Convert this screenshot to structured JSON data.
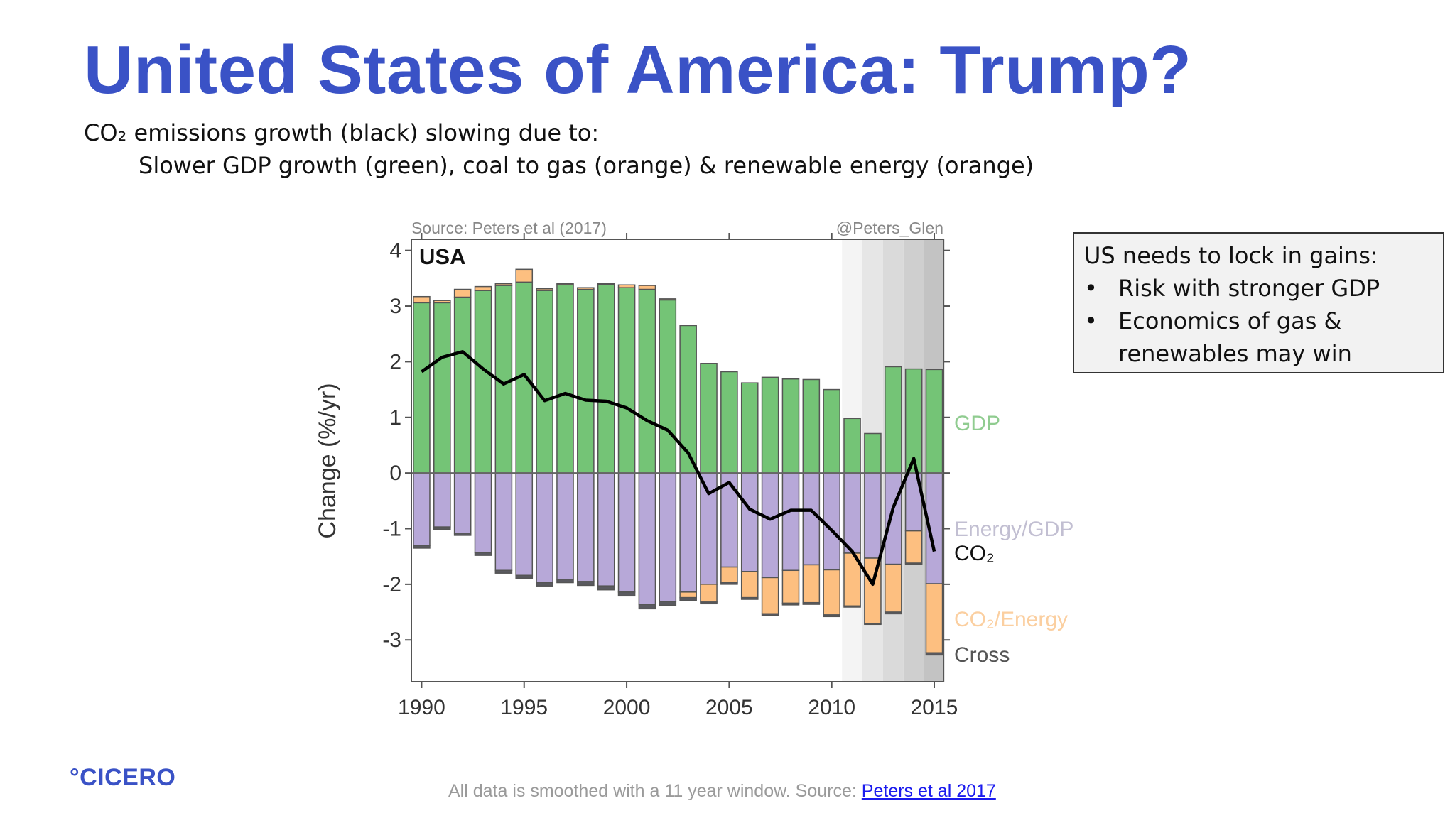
{
  "slide": {
    "title": "United States of America: Trump?",
    "subtitle_line1": "CO₂ emissions growth (black) slowing due to:",
    "subtitle_line2": "Slower GDP growth (green), coal to gas (orange) & renewable energy (orange)"
  },
  "callout": {
    "heading": "US needs to lock in gains:",
    "bullets": [
      "Risk with stronger GDP",
      "Economics of gas & renewables may win"
    ]
  },
  "footer": {
    "logo": "°CICERO",
    "note": "All data is smoothed with a 11 year window. Source: ",
    "link": "Peters et al 2017"
  },
  "chart_data": {
    "type": "bar",
    "stacked": true,
    "panel_label": "USA",
    "source_label": "Source: Peters et al (2017)",
    "credit_label": "@Peters_Glen",
    "ylabel": "Change (%/yr)",
    "xlabel": "",
    "xlim": [
      1989.5,
      2015.45
    ],
    "ylim": [
      -3.75,
      4.2
    ],
    "yticks": [
      -3,
      -2,
      -1,
      0,
      1,
      2,
      3,
      4
    ],
    "xticks": [
      1990,
      1995,
      2000,
      2005,
      2010,
      2015
    ],
    "shaded_years": [
      2011,
      2012,
      2013,
      2014,
      2015
    ],
    "legend_placement": "right",
    "colors": {
      "GDP": "#74c476",
      "Energy/GDP": "#b7a8d8",
      "CO2/Energy": "#fdbf80",
      "Cross": "#5a5a60",
      "CO2": "#000000"
    },
    "legend": [
      {
        "label": "GDP",
        "color": "#90cc90"
      },
      {
        "label": "Energy/GDP",
        "color": "#c2bfd2"
      },
      {
        "label": "CO₂",
        "color": "#111111"
      },
      {
        "label": "CO₂/Energy",
        "color": "#fbcfa0"
      },
      {
        "label": "Cross",
        "color": "#555555"
      }
    ],
    "years": [
      1990,
      1991,
      1992,
      1993,
      1994,
      1995,
      1996,
      1997,
      1998,
      1999,
      2000,
      2001,
      2002,
      2003,
      2004,
      2005,
      2006,
      2007,
      2008,
      2009,
      2010,
      2011,
      2012,
      2013,
      2014,
      2015
    ],
    "series": [
      {
        "name": "GDP",
        "values": [
          3.06,
          3.06,
          3.16,
          3.28,
          3.37,
          3.43,
          3.28,
          3.38,
          3.3,
          3.39,
          3.33,
          3.3,
          3.11,
          2.65,
          1.97,
          1.82,
          1.62,
          1.72,
          1.69,
          1.68,
          1.5,
          0.98,
          0.71,
          1.91,
          1.87,
          1.86
        ]
      },
      {
        "name": "CO₂/Energy",
        "values_positive": [
          0.11,
          0.04,
          0.14,
          0.07,
          0.03,
          0.23,
          0.03,
          0.02,
          0.03,
          0.01,
          0.05,
          0.07,
          0.02,
          0,
          0,
          0,
          0,
          0,
          0,
          0,
          0,
          0,
          0,
          0,
          0,
          0
        ],
        "values_negative": [
          0,
          0,
          0,
          0,
          0,
          0,
          0,
          0,
          0,
          0,
          0,
          0,
          0,
          -0.1,
          -0.32,
          -0.28,
          -0.47,
          -0.65,
          -0.59,
          -0.68,
          -0.81,
          -0.95,
          -1.18,
          -0.86,
          -0.58,
          -1.24
        ]
      },
      {
        "name": "Energy/GDP",
        "values": [
          -1.3,
          -0.97,
          -1.08,
          -1.43,
          -1.75,
          -1.84,
          -1.97,
          -1.91,
          -1.95,
          -2.03,
          -2.14,
          -2.36,
          -2.31,
          -2.14,
          -2.0,
          -1.69,
          -1.77,
          -1.88,
          -1.75,
          -1.65,
          -1.74,
          -1.44,
          -1.53,
          -1.64,
          -1.04,
          -1.99
        ]
      },
      {
        "name": "Cross",
        "values": [
          -0.05,
          -0.04,
          -0.04,
          -0.05,
          -0.05,
          -0.05,
          -0.06,
          -0.06,
          -0.07,
          -0.07,
          -0.07,
          -0.08,
          -0.07,
          -0.05,
          -0.03,
          -0.03,
          -0.03,
          -0.03,
          -0.03,
          -0.03,
          -0.03,
          -0.02,
          -0.01,
          -0.03,
          -0.02,
          -0.04
        ]
      },
      {
        "name": "CO₂",
        "type": "line",
        "values": [
          1.82,
          2.08,
          2.18,
          1.87,
          1.6,
          1.77,
          1.3,
          1.43,
          1.31,
          1.29,
          1.17,
          0.94,
          0.77,
          0.36,
          -0.37,
          -0.17,
          -0.65,
          -0.83,
          -0.67,
          -0.67,
          -1.03,
          -1.41,
          -2.0,
          -0.62,
          0.26,
          -1.41
        ]
      }
    ]
  }
}
